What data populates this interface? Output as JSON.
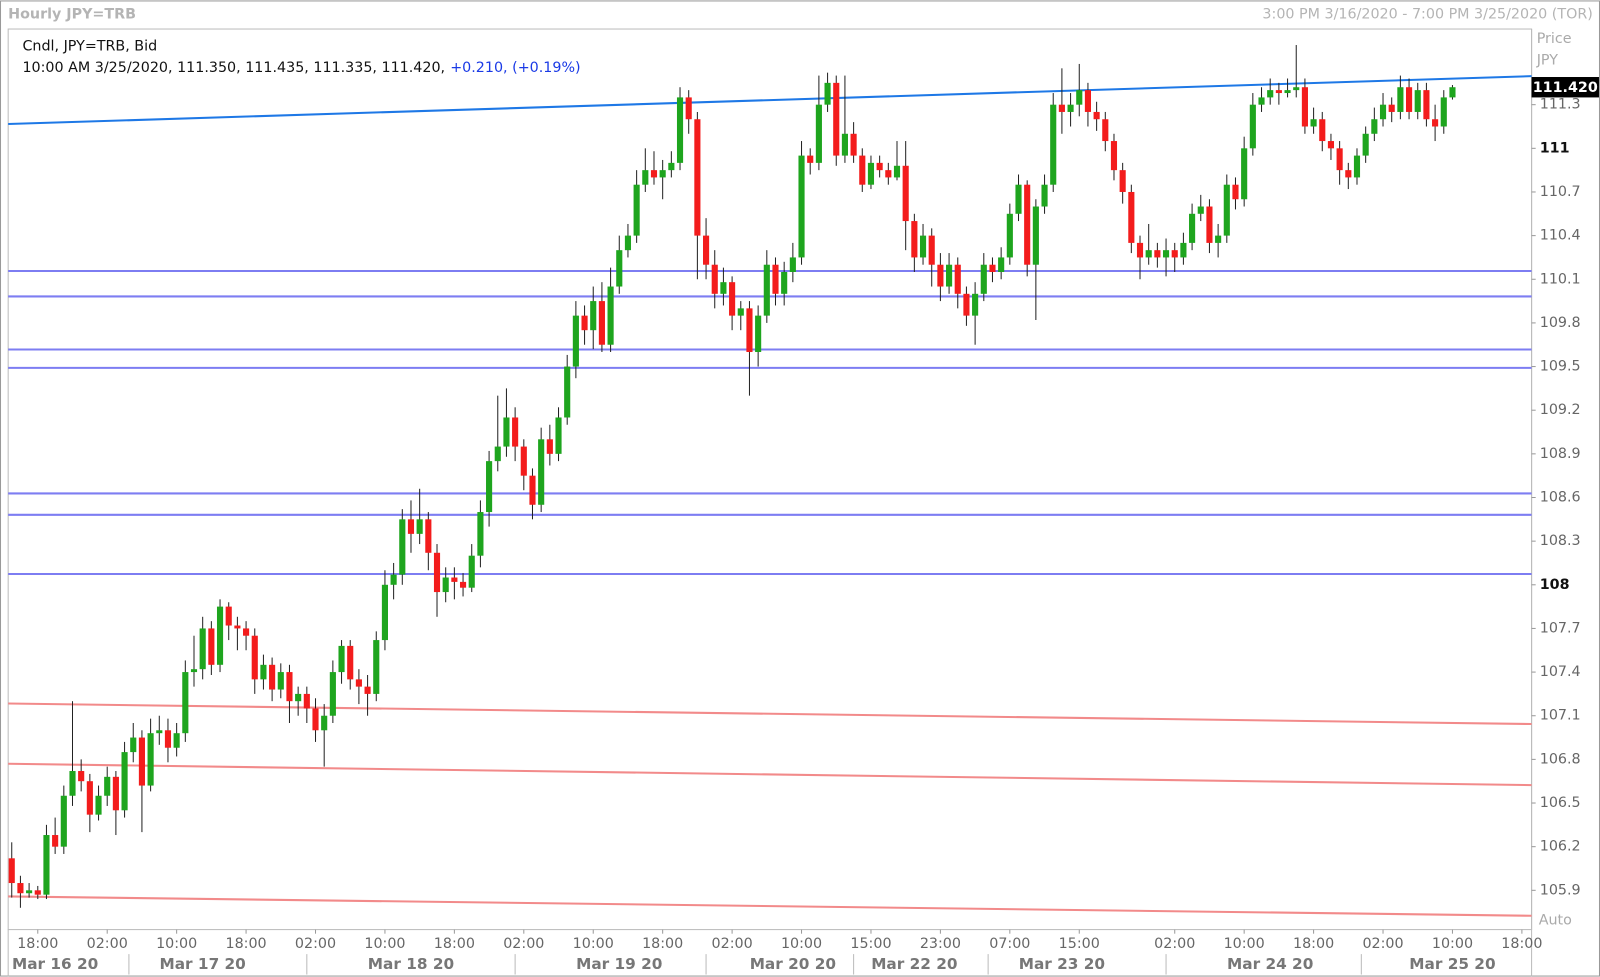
{
  "chart_data": {
    "type": "candlestick",
    "title": "Hourly JPY=TRB",
    "range_text": "3:00 PM 3/16/2020 - 7:00 PM 3/25/2020 (TOR)",
    "info_line1": "Cndl, JPY=TRB, Bid",
    "info_line2": "10:00 AM 3/25/2020, 111.350, 111.435, 111.335, 111.420,",
    "info_change": "+0.210, (+0.19%)",
    "axis_title": "Price",
    "axis_unit": "JPY",
    "scale_mode": "Auto",
    "up_color": "#1ea51e",
    "down_color": "#f31c1c",
    "wick_color": "#222222",
    "ylim": [
      105.63,
      111.82
    ],
    "yticks": [
      105.9,
      106.2,
      106.5,
      106.8,
      107.1,
      107.4,
      107.7,
      108,
      108.3,
      108.6,
      108.9,
      109.2,
      109.5,
      109.8,
      110.1,
      110.4,
      110.7,
      111,
      111.3
    ],
    "last_price": {
      "value": 111.42,
      "label": "111.420"
    },
    "categories": [
      null,
      null,
      null,
      "18:00",
      null,
      null,
      null,
      null,
      null,
      null,
      null,
      "02:00",
      null,
      null,
      null,
      null,
      null,
      null,
      null,
      "10:00",
      null,
      null,
      null,
      null,
      null,
      null,
      null,
      "18:00",
      null,
      null,
      null,
      null,
      null,
      null,
      null,
      "02:00",
      null,
      null,
      null,
      null,
      null,
      null,
      null,
      "10:00",
      null,
      null,
      null,
      null,
      null,
      null,
      null,
      "18:00",
      null,
      null,
      null,
      null,
      null,
      null,
      null,
      "02:00",
      null,
      null,
      null,
      null,
      null,
      null,
      null,
      "10:00",
      null,
      null,
      null,
      null,
      null,
      null,
      null,
      "18:00",
      null,
      null,
      null,
      null,
      null,
      null,
      null,
      "02:00",
      null,
      null,
      null,
      null,
      null,
      null,
      null,
      "10:00",
      null,
      null,
      null,
      null,
      null,
      null,
      null,
      "15:00",
      null,
      null,
      null,
      null,
      null,
      null,
      null,
      "23:00",
      null,
      null,
      null,
      null,
      null,
      null,
      null,
      "07:00",
      null,
      null,
      null,
      null,
      null,
      null,
      null,
      "15:00",
      null,
      null,
      null,
      null,
      null,
      null,
      null,
      null,
      null,
      null,
      "02:00",
      null,
      null,
      null,
      null,
      null,
      null,
      null,
      "10:00",
      null,
      null,
      null,
      null,
      null,
      null,
      null,
      "18:00",
      null,
      null,
      null,
      null,
      null,
      null,
      null,
      "02:00",
      null,
      null,
      null,
      null,
      null,
      null,
      null,
      "10:00",
      null,
      null,
      null,
      null,
      null,
      null,
      null,
      "18:00"
    ],
    "date_categories": [
      null,
      null,
      null,
      null,
      null,
      "Mar 16 20",
      null,
      null,
      null,
      null,
      null,
      null,
      null,
      null,
      null,
      null,
      null,
      null,
      null,
      null,
      null,
      null,
      "Mar 17 20",
      null,
      null,
      null,
      null,
      null,
      null,
      null,
      null,
      null,
      null,
      null,
      null,
      null,
      null,
      null,
      null,
      null,
      null,
      null,
      null,
      null,
      null,
      null,
      "Mar 18 20",
      null,
      null,
      null,
      null,
      null,
      null,
      null,
      null,
      null,
      null,
      null,
      null,
      null,
      null,
      null,
      null,
      null,
      null,
      null,
      null,
      null,
      null,
      null,
      "Mar 19 20",
      null,
      null,
      null,
      null,
      null,
      null,
      null,
      null,
      null,
      null,
      null,
      null,
      null,
      null,
      null,
      null,
      null,
      null,
      null,
      "Mar 20 20",
      null,
      null,
      null,
      null,
      null,
      null,
      null,
      null,
      null,
      null,
      null,
      null,
      null,
      "Mar 22 20",
      null,
      null,
      null,
      null,
      null,
      null,
      null,
      null,
      null,
      null,
      null,
      null,
      null,
      null,
      null,
      null,
      "Mar 23 20",
      null,
      null,
      null,
      null,
      null,
      null,
      null,
      null,
      null,
      null,
      null,
      null,
      null,
      null,
      null,
      null,
      null,
      null,
      null,
      null,
      null,
      null,
      null,
      "Mar 24 20",
      null,
      null,
      null,
      null,
      null,
      null,
      null,
      null,
      null,
      null,
      null,
      null,
      null,
      null,
      null,
      null,
      null,
      null,
      null,
      null,
      "Mar 25 20",
      null,
      null,
      null,
      null,
      null,
      null,
      null,
      null
    ],
    "ohlc": [
      [
        106.12,
        106.23,
        105.85,
        105.95
      ],
      [
        105.95,
        106.0,
        105.78,
        105.88
      ],
      [
        105.88,
        105.95,
        105.85,
        105.9
      ],
      [
        105.9,
        105.93,
        105.84,
        105.87
      ],
      [
        105.87,
        106.35,
        105.84,
        106.28
      ],
      [
        106.28,
        106.4,
        106.15,
        106.2
      ],
      [
        106.2,
        106.62,
        106.15,
        106.55
      ],
      [
        106.55,
        107.2,
        106.48,
        106.72
      ],
      [
        106.72,
        106.8,
        106.58,
        106.65
      ],
      [
        106.65,
        106.7,
        106.3,
        106.42
      ],
      [
        106.42,
        106.62,
        106.38,
        106.55
      ],
      [
        106.55,
        106.75,
        106.48,
        106.68
      ],
      [
        106.68,
        106.72,
        106.28,
        106.45
      ],
      [
        106.45,
        106.92,
        106.4,
        106.85
      ],
      [
        106.85,
        107.05,
        106.78,
        106.95
      ],
      [
        106.95,
        107.0,
        106.3,
        106.62
      ],
      [
        106.62,
        107.08,
        106.58,
        106.98
      ],
      [
        106.98,
        107.1,
        106.9,
        107.0
      ],
      [
        107.0,
        107.08,
        106.78,
        106.88
      ],
      [
        106.88,
        107.05,
        106.82,
        106.98
      ],
      [
        106.98,
        107.48,
        106.92,
        107.4
      ],
      [
        107.4,
        107.65,
        107.3,
        107.42
      ],
      [
        107.42,
        107.78,
        107.35,
        107.7
      ],
      [
        107.7,
        107.75,
        107.38,
        107.45
      ],
      [
        107.45,
        107.9,
        107.4,
        107.85
      ],
      [
        107.85,
        107.88,
        107.62,
        107.72
      ],
      [
        107.72,
        107.78,
        107.55,
        107.7
      ],
      [
        107.7,
        107.75,
        107.55,
        107.65
      ],
      [
        107.65,
        107.7,
        107.25,
        107.35
      ],
      [
        107.35,
        107.52,
        107.28,
        107.45
      ],
      [
        107.45,
        107.5,
        107.2,
        107.28
      ],
      [
        107.28,
        107.46,
        107.22,
        107.4
      ],
      [
        107.4,
        107.45,
        107.05,
        107.2
      ],
      [
        107.2,
        107.3,
        107.1,
        107.25
      ],
      [
        107.25,
        107.3,
        107.05,
        107.15
      ],
      [
        107.15,
        107.22,
        106.92,
        107.0
      ],
      [
        107.0,
        107.18,
        106.75,
        107.1
      ],
      [
        107.1,
        107.48,
        107.05,
        107.4
      ],
      [
        107.4,
        107.62,
        107.32,
        107.58
      ],
      [
        107.58,
        107.62,
        107.28,
        107.35
      ],
      [
        107.35,
        107.42,
        107.18,
        107.3
      ],
      [
        107.3,
        107.38,
        107.1,
        107.25
      ],
      [
        107.25,
        107.68,
        107.2,
        107.62
      ],
      [
        107.62,
        108.1,
        107.55,
        108.0
      ],
      [
        108.0,
        108.15,
        107.9,
        108.07
      ],
      [
        108.07,
        108.52,
        108.0,
        108.45
      ],
      [
        108.45,
        108.58,
        108.22,
        108.35
      ],
      [
        108.35,
        108.66,
        108.28,
        108.45
      ],
      [
        108.45,
        108.5,
        108.1,
        108.22
      ],
      [
        108.22,
        108.28,
        107.78,
        107.95
      ],
      [
        107.95,
        108.12,
        107.88,
        108.05
      ],
      [
        108.05,
        108.12,
        107.9,
        108.02
      ],
      [
        108.02,
        108.08,
        107.92,
        107.98
      ],
      [
        107.98,
        108.28,
        107.95,
        108.2
      ],
      [
        108.2,
        108.58,
        108.12,
        108.5
      ],
      [
        108.5,
        108.92,
        108.4,
        108.85
      ],
      [
        108.85,
        109.3,
        108.78,
        108.95
      ],
      [
        108.95,
        109.35,
        108.88,
        109.15
      ],
      [
        109.15,
        109.22,
        108.85,
        108.95
      ],
      [
        108.95,
        109.0,
        108.65,
        108.75
      ],
      [
        108.75,
        108.8,
        108.45,
        108.55
      ],
      [
        108.55,
        109.08,
        108.5,
        109.0
      ],
      [
        109.0,
        109.1,
        108.82,
        108.9
      ],
      [
        108.9,
        109.22,
        108.85,
        109.15
      ],
      [
        109.15,
        109.58,
        109.1,
        109.5
      ],
      [
        109.5,
        109.95,
        109.42,
        109.85
      ],
      [
        109.85,
        109.92,
        109.65,
        109.75
      ],
      [
        109.75,
        110.05,
        109.62,
        109.95
      ],
      [
        109.95,
        110.08,
        109.6,
        109.65
      ],
      [
        109.65,
        110.18,
        109.6,
        110.05
      ],
      [
        110.05,
        110.4,
        110.0,
        110.3
      ],
      [
        110.3,
        110.48,
        110.25,
        110.4
      ],
      [
        110.4,
        110.85,
        110.35,
        110.75
      ],
      [
        110.75,
        111.0,
        110.7,
        110.85
      ],
      [
        110.85,
        110.98,
        110.75,
        110.8
      ],
      [
        110.8,
        110.92,
        110.65,
        110.85
      ],
      [
        110.85,
        110.98,
        110.8,
        110.9
      ],
      [
        110.9,
        111.42,
        110.85,
        111.35
      ],
      [
        111.35,
        111.4,
        111.1,
        111.2
      ],
      [
        111.2,
        111.25,
        110.1,
        110.4
      ],
      [
        110.4,
        110.52,
        110.1,
        110.2
      ],
      [
        110.2,
        110.3,
        109.9,
        110.0
      ],
      [
        110.0,
        110.18,
        109.92,
        110.08
      ],
      [
        110.08,
        110.12,
        109.75,
        109.85
      ],
      [
        109.85,
        109.95,
        109.75,
        109.9
      ],
      [
        109.9,
        109.95,
        109.3,
        109.6
      ],
      [
        109.6,
        109.92,
        109.5,
        109.85
      ],
      [
        109.85,
        110.3,
        109.8,
        110.2
      ],
      [
        110.2,
        110.25,
        109.92,
        110.0
      ],
      [
        110.0,
        110.22,
        109.92,
        110.15
      ],
      [
        110.15,
        110.35,
        110.08,
        110.25
      ],
      [
        110.25,
        111.05,
        110.2,
        110.95
      ],
      [
        110.95,
        111.0,
        110.82,
        110.9
      ],
      [
        110.9,
        111.5,
        110.85,
        111.3
      ],
      [
        111.3,
        111.52,
        111.25,
        111.45
      ],
      [
        111.45,
        111.5,
        110.88,
        110.95
      ],
      [
        110.95,
        111.5,
        110.9,
        111.1
      ],
      [
        111.1,
        111.18,
        110.9,
        110.95
      ],
      [
        110.95,
        111.0,
        110.7,
        110.75
      ],
      [
        110.75,
        110.95,
        110.72,
        110.9
      ],
      [
        110.9,
        110.95,
        110.8,
        110.85
      ],
      [
        110.85,
        110.9,
        110.75,
        110.8
      ],
      [
        110.8,
        111.05,
        110.78,
        110.88
      ],
      [
        110.88,
        111.05,
        110.3,
        110.5
      ],
      [
        110.5,
        110.55,
        110.15,
        110.25
      ],
      [
        110.25,
        110.48,
        110.2,
        110.4
      ],
      [
        110.4,
        110.45,
        110.05,
        110.2
      ],
      [
        110.2,
        110.28,
        109.95,
        110.05
      ],
      [
        110.05,
        110.28,
        110.0,
        110.2
      ],
      [
        110.2,
        110.25,
        109.9,
        110.0
      ],
      [
        110.0,
        110.05,
        109.78,
        109.85
      ],
      [
        109.85,
        110.08,
        109.65,
        110.0
      ],
      [
        110.0,
        110.28,
        109.95,
        110.2
      ],
      [
        110.2,
        110.25,
        110.08,
        110.15
      ],
      [
        110.15,
        110.32,
        110.1,
        110.25
      ],
      [
        110.25,
        110.62,
        110.2,
        110.55
      ],
      [
        110.55,
        110.82,
        110.5,
        110.75
      ],
      [
        110.75,
        110.78,
        110.12,
        110.2
      ],
      [
        110.2,
        110.65,
        109.82,
        110.6
      ],
      [
        110.6,
        110.82,
        110.55,
        110.75
      ],
      [
        110.75,
        111.38,
        110.7,
        111.3
      ],
      [
        111.3,
        111.55,
        111.1,
        111.25
      ],
      [
        111.25,
        111.38,
        111.15,
        111.3
      ],
      [
        111.3,
        111.58,
        111.22,
        111.4
      ],
      [
        111.4,
        111.45,
        111.15,
        111.25
      ],
      [
        111.25,
        111.32,
        111.12,
        111.2
      ],
      [
        111.2,
        111.25,
        110.98,
        111.05
      ],
      [
        111.05,
        111.1,
        110.78,
        110.85
      ],
      [
        110.85,
        110.9,
        110.62,
        110.7
      ],
      [
        110.7,
        110.75,
        110.28,
        110.35
      ],
      [
        110.35,
        110.4,
        110.1,
        110.25
      ],
      [
        110.25,
        110.48,
        110.2,
        110.3
      ],
      [
        110.3,
        110.35,
        110.18,
        110.25
      ],
      [
        110.25,
        110.38,
        110.12,
        110.3
      ],
      [
        110.3,
        110.35,
        110.15,
        110.25
      ],
      [
        110.25,
        110.42,
        110.2,
        110.35
      ],
      [
        110.35,
        110.62,
        110.3,
        110.55
      ],
      [
        110.55,
        110.68,
        110.5,
        110.6
      ],
      [
        110.6,
        110.65,
        110.28,
        110.35
      ],
      [
        110.35,
        110.48,
        110.25,
        110.4
      ],
      [
        110.4,
        110.82,
        110.35,
        110.75
      ],
      [
        110.75,
        110.8,
        110.58,
        110.65
      ],
      [
        110.65,
        111.08,
        110.6,
        111.0
      ],
      [
        111.0,
        111.38,
        110.95,
        111.3
      ],
      [
        111.3,
        111.42,
        111.25,
        111.35
      ],
      [
        111.35,
        111.48,
        111.3,
        111.4
      ],
      [
        111.4,
        111.45,
        111.3,
        111.38
      ],
      [
        111.38,
        111.48,
        111.35,
        111.4
      ],
      [
        111.4,
        111.71,
        111.35,
        111.42
      ],
      [
        111.42,
        111.48,
        111.1,
        111.15
      ],
      [
        111.15,
        111.28,
        111.1,
        111.2
      ],
      [
        111.2,
        111.25,
        110.98,
        111.05
      ],
      [
        111.05,
        111.1,
        110.92,
        111.0
      ],
      [
        111.0,
        111.05,
        110.75,
        110.85
      ],
      [
        110.85,
        110.9,
        110.72,
        110.8
      ],
      [
        110.8,
        111.0,
        110.75,
        110.95
      ],
      [
        110.95,
        111.15,
        110.9,
        111.1
      ],
      [
        111.1,
        111.28,
        111.05,
        111.2
      ],
      [
        111.2,
        111.38,
        111.15,
        111.3
      ],
      [
        111.3,
        111.35,
        111.18,
        111.25
      ],
      [
        111.25,
        111.5,
        111.2,
        111.42
      ],
      [
        111.42,
        111.48,
        111.2,
        111.25
      ],
      [
        111.25,
        111.45,
        111.2,
        111.4
      ],
      [
        111.4,
        111.45,
        111.15,
        111.2
      ],
      [
        111.2,
        111.3,
        111.05,
        111.15
      ],
      [
        111.15,
        111.4,
        111.1,
        111.35
      ],
      [
        111.35,
        111.435,
        111.335,
        111.42
      ],
      null,
      null,
      null,
      null,
      null,
      null,
      null,
      null
    ],
    "trend_lines": [
      {
        "color": "#1e78e6",
        "values": [
          111.167,
          111.496
        ]
      },
      {
        "color": "#f28a8a",
        "values": [
          107.184,
          107.043
        ]
      },
      {
        "color": "#f28a8a",
        "values": [
          106.77,
          106.623
        ]
      },
      {
        "color": "#f28a8a",
        "values": [
          105.858,
          105.725
        ]
      }
    ],
    "levels": {
      "color": "#7d7df2",
      "values": [
        110.157,
        109.982,
        109.617,
        109.491,
        108.628,
        108.481,
        108.074
      ]
    }
  }
}
